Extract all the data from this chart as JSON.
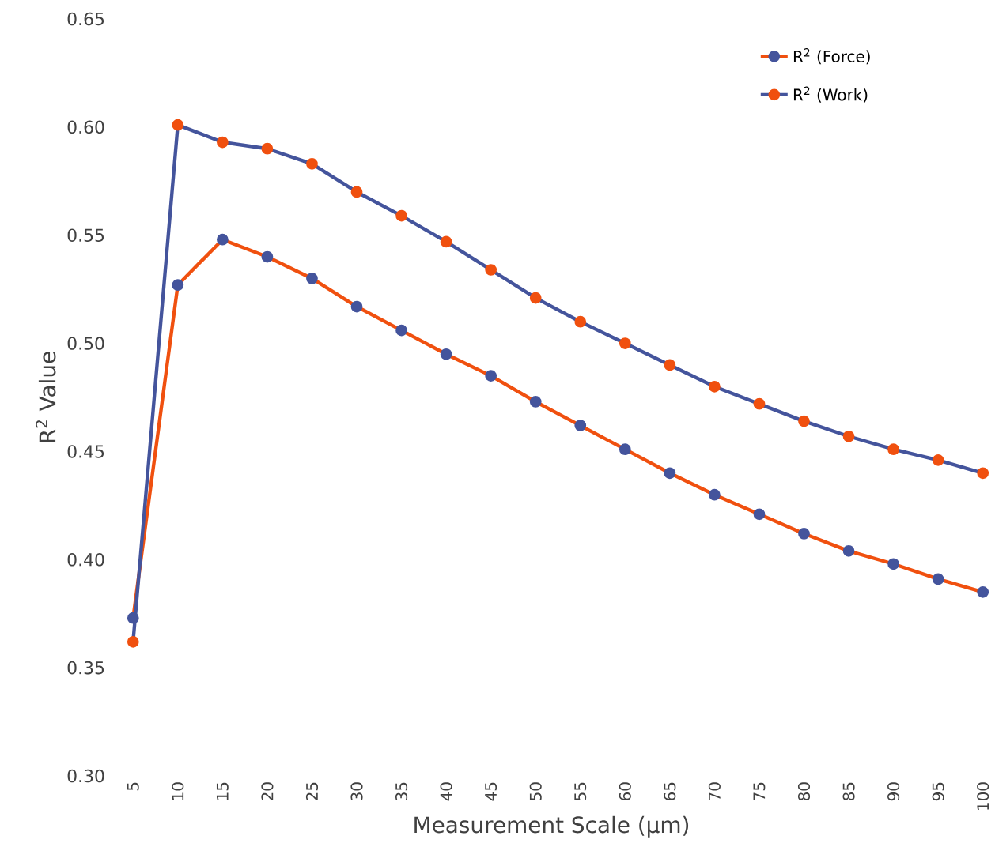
{
  "chart_data": {
    "type": "line",
    "xlabel": "Measurement Scale (µm)",
    "ylabel": "R$^{2}$ Value",
    "categories": [
      "5",
      "10",
      "15",
      "20",
      "25",
      "30",
      "35",
      "40",
      "45",
      "50",
      "55",
      "60",
      "65",
      "70",
      "75",
      "80",
      "85",
      "90",
      "95",
      "100"
    ],
    "ylim": [
      0.3,
      0.65
    ],
    "yticks": [
      {
        "value": 0.3,
        "label": "0.30"
      },
      {
        "value": 0.35,
        "label": "0.35"
      },
      {
        "value": 0.4,
        "label": "0.40"
      },
      {
        "value": 0.45,
        "label": "0.45"
      },
      {
        "value": 0.5,
        "label": "0.50"
      },
      {
        "value": 0.55,
        "label": "0.55"
      },
      {
        "value": 0.6,
        "label": "0.60"
      },
      {
        "value": 0.65,
        "label": "0.65"
      }
    ],
    "grid": false,
    "legend": "top right",
    "marker": "circle",
    "line_style": "solid",
    "series": [
      {
        "name": "R$^{2}$ (Force)",
        "color": "#f0500f",
        "colors": [
          "#44549c",
          "#44549c",
          "#44549c",
          "#44549c",
          "#44549c",
          "#44549c",
          "#44549c",
          "#44549c",
          "#44549c",
          "#44549c",
          "#44549c",
          "#44549c",
          "#44549c",
          "#44549c",
          "#44549c",
          "#44549c",
          "#44549c",
          "#44549c",
          "#44549c",
          "#44549c"
        ],
        "values": [
          0.373,
          0.527,
          0.548,
          0.54,
          0.53,
          0.517,
          0.506,
          0.495,
          0.485,
          0.473,
          0.462,
          0.451,
          0.44,
          0.43,
          0.421,
          0.412,
          0.404,
          0.398,
          0.391,
          0.385
        ]
      },
      {
        "name": "R$^{2}$ (Work)",
        "color": "#44549c",
        "colors": [
          "#f0500f",
          "#f0500f",
          "#f0500f",
          "#f0500f",
          "#f0500f",
          "#f0500f",
          "#f0500f",
          "#f0500f",
          "#f0500f",
          "#f0500f",
          "#f0500f",
          "#f0500f",
          "#f0500f",
          "#f0500f",
          "#f0500f",
          "#f0500f",
          "#f0500f",
          "#f0500f",
          "#f0500f",
          "#f0500f"
        ],
        "values": [
          0.362,
          0.601,
          0.593,
          0.59,
          0.583,
          0.57,
          0.559,
          0.547,
          0.534,
          0.521,
          0.51,
          0.5,
          0.49,
          0.48,
          0.472,
          0.464,
          0.457,
          0.451,
          0.446,
          0.44
        ]
      }
    ]
  }
}
